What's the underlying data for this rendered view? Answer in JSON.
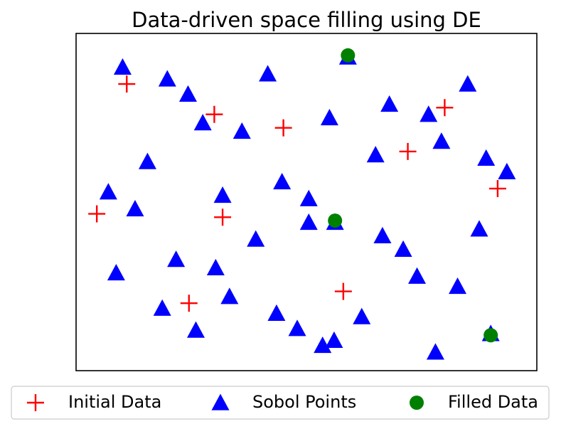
{
  "chart_data": {
    "type": "scatter",
    "title": "Data-driven space filling using DE",
    "xlabel": "",
    "ylabel": "",
    "xlim": [
      0,
      1
    ],
    "ylim": [
      0,
      1
    ],
    "axis_ticks_visible": false,
    "grid": false,
    "legend_placement": "bottom",
    "series": [
      {
        "name": "Initial Data",
        "marker": "plus",
        "color": "#ff0000",
        "points": [
          [
            0.11,
            0.85
          ],
          [
            0.3,
            0.76
          ],
          [
            0.45,
            0.72
          ],
          [
            0.72,
            0.65
          ],
          [
            0.8,
            0.78
          ],
          [
            0.915,
            0.54
          ],
          [
            0.045,
            0.465
          ],
          [
            0.318,
            0.455
          ],
          [
            0.58,
            0.235
          ],
          [
            0.245,
            0.2
          ]
        ]
      },
      {
        "name": "Sobol Points",
        "marker": "triangle",
        "color": "#0000ff",
        "points": [
          [
            0.101,
            0.9
          ],
          [
            0.198,
            0.865
          ],
          [
            0.243,
            0.82
          ],
          [
            0.416,
            0.88
          ],
          [
            0.59,
            0.93
          ],
          [
            0.85,
            0.85
          ],
          [
            0.68,
            0.79
          ],
          [
            0.765,
            0.76
          ],
          [
            0.275,
            0.735
          ],
          [
            0.36,
            0.71
          ],
          [
            0.55,
            0.75
          ],
          [
            0.65,
            0.64
          ],
          [
            0.793,
            0.68
          ],
          [
            0.89,
            0.63
          ],
          [
            0.935,
            0.59
          ],
          [
            0.155,
            0.62
          ],
          [
            0.07,
            0.53
          ],
          [
            0.128,
            0.48
          ],
          [
            0.318,
            0.52
          ],
          [
            0.447,
            0.56
          ],
          [
            0.505,
            0.51
          ],
          [
            0.562,
            0.44
          ],
          [
            0.875,
            0.42
          ],
          [
            0.39,
            0.39
          ],
          [
            0.665,
            0.4
          ],
          [
            0.71,
            0.36
          ],
          [
            0.087,
            0.29
          ],
          [
            0.217,
            0.33
          ],
          [
            0.303,
            0.305
          ],
          [
            0.74,
            0.28
          ],
          [
            0.828,
            0.25
          ],
          [
            0.187,
            0.185
          ],
          [
            0.333,
            0.22
          ],
          [
            0.435,
            0.17
          ],
          [
            0.48,
            0.125
          ],
          [
            0.62,
            0.16
          ],
          [
            0.26,
            0.12
          ],
          [
            0.535,
            0.075
          ],
          [
            0.78,
            0.055
          ],
          [
            0.9,
            0.11
          ],
          [
            0.56,
            0.09
          ],
          [
            0.505,
            0.44
          ]
        ]
      },
      {
        "name": "Filled Data",
        "marker": "circle",
        "color": "#008000",
        "points": [
          [
            0.59,
            0.935
          ],
          [
            0.562,
            0.445
          ],
          [
            0.9,
            0.105
          ]
        ]
      }
    ]
  }
}
